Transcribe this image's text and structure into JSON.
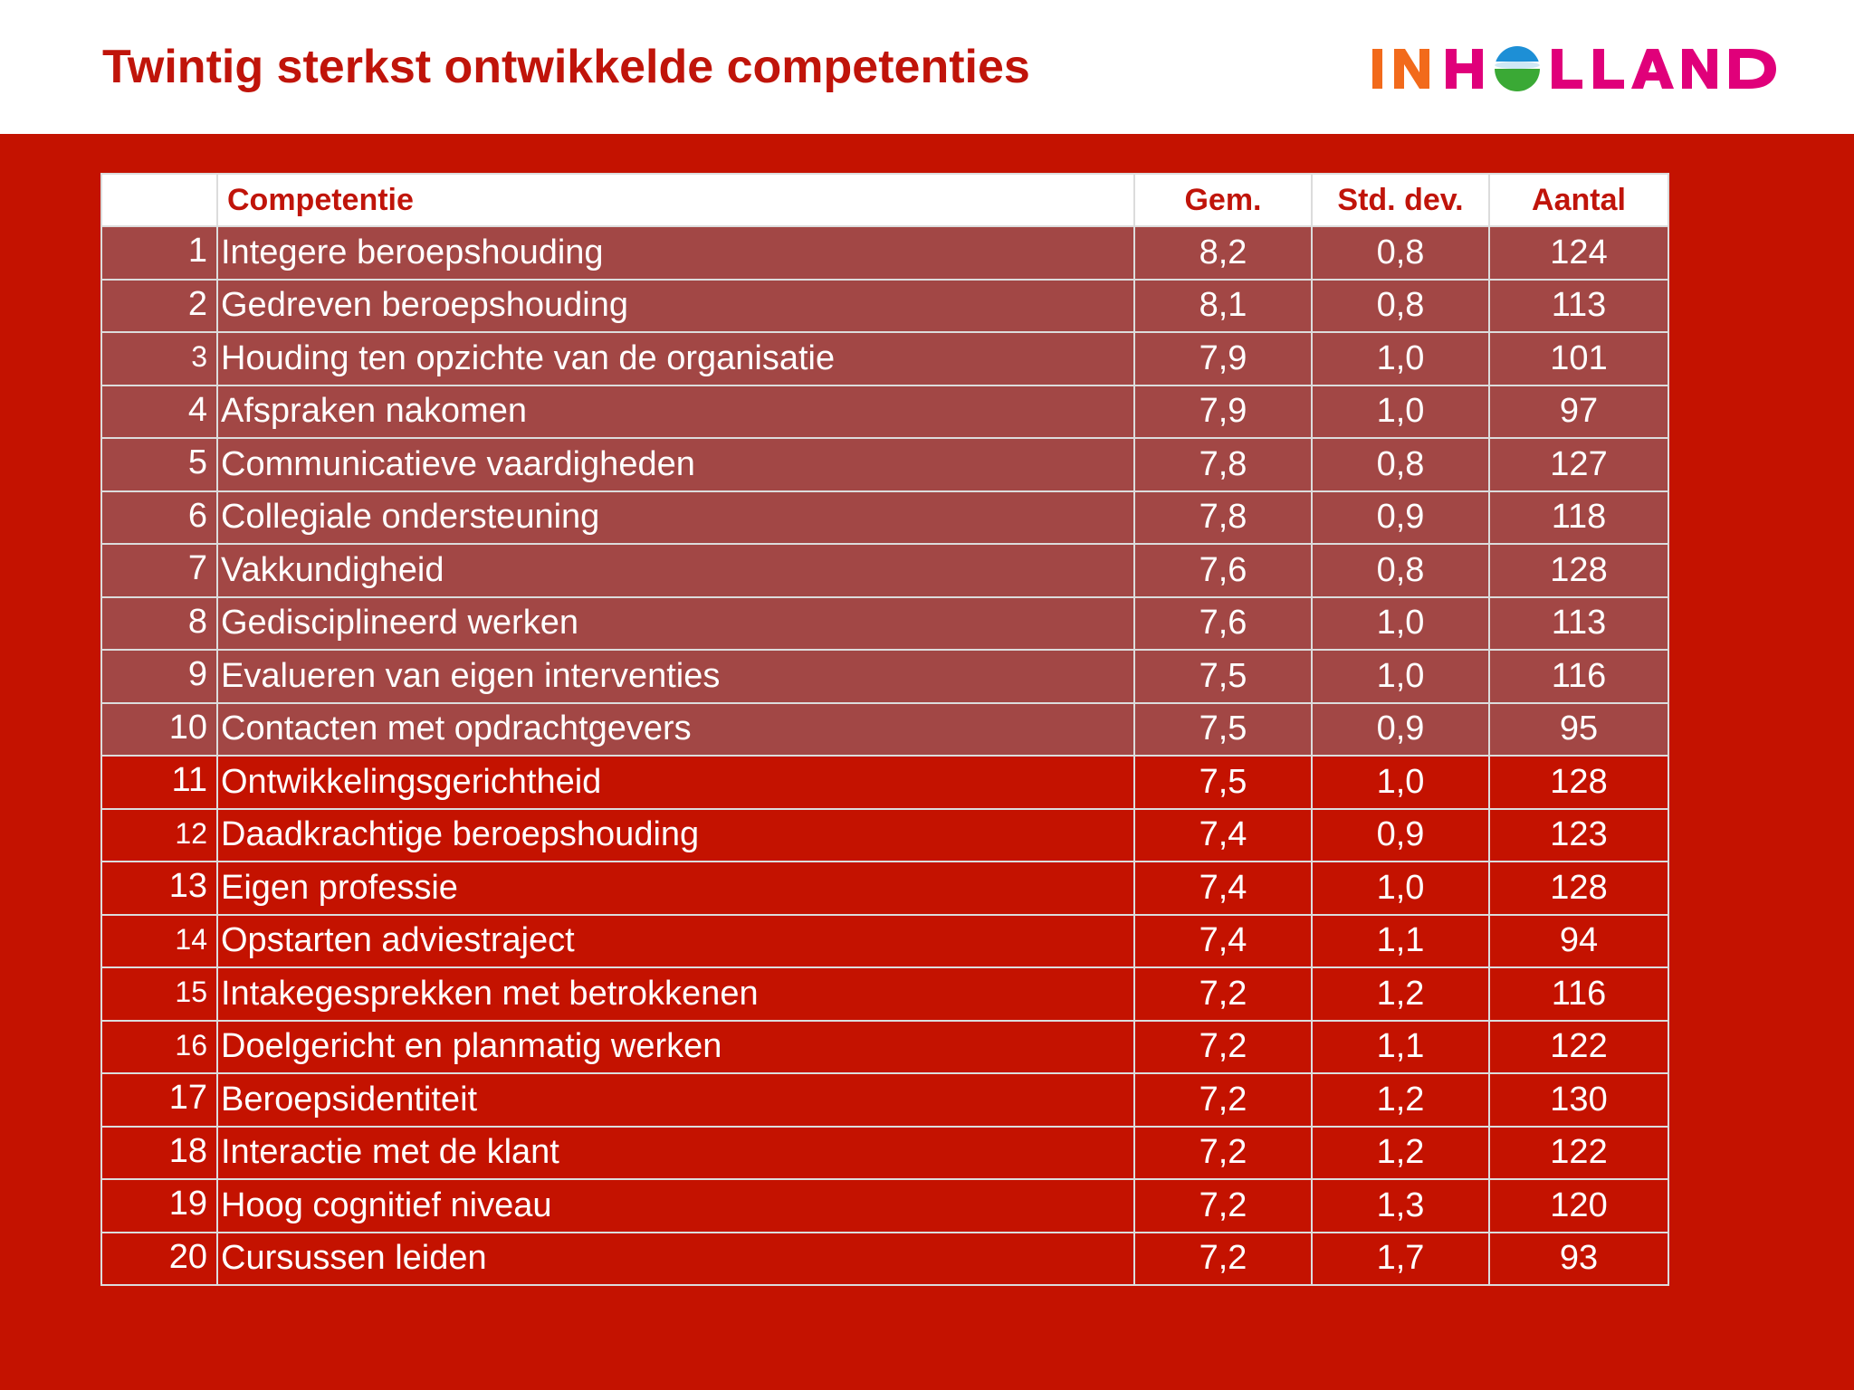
{
  "slide": {
    "title": "Twintig sterkst ontwikkelde competenties"
  },
  "logo": {
    "text": "INHOLLAND",
    "colors": {
      "orange": "#f26a1b",
      "magenta": "#e0007a",
      "globe_blue": "#1d8fd6",
      "globe_green": "#3aa935"
    }
  },
  "colors": {
    "background_red": "#c41200",
    "highlight_row": "#a24745",
    "title_red": "#c0140a"
  },
  "table": {
    "headers": {
      "rank": "",
      "name": "Competentie",
      "mean": "Gem.",
      "sd": "Std. dev.",
      "count": "Aantal"
    },
    "highlighted_rows": 10,
    "rows": [
      {
        "rank": "1",
        "name": "Integere beroepshouding",
        "mean": "8,2",
        "sd": "0,8",
        "count": "124"
      },
      {
        "rank": "2",
        "name": "Gedreven beroepshouding",
        "mean": "8,1",
        "sd": "0,8",
        "count": "113"
      },
      {
        "rank": "3",
        "name": "Houding ten opzichte van de organisatie",
        "mean": "7,9",
        "sd": "1,0",
        "count": "101"
      },
      {
        "rank": "4",
        "name": "Afspraken nakomen",
        "mean": "7,9",
        "sd": "1,0",
        "count": "97"
      },
      {
        "rank": "5",
        "name": "Communicatieve vaardigheden",
        "mean": "7,8",
        "sd": "0,8",
        "count": "127"
      },
      {
        "rank": "6",
        "name": "Collegiale ondersteuning",
        "mean": "7,8",
        "sd": "0,9",
        "count": "118"
      },
      {
        "rank": "7",
        "name": "Vakkundigheid",
        "mean": "7,6",
        "sd": "0,8",
        "count": "128"
      },
      {
        "rank": "8",
        "name": "Gedisciplineerd werken",
        "mean": "7,6",
        "sd": "1,0",
        "count": "113"
      },
      {
        "rank": "9",
        "name": "Evalueren van eigen interventies",
        "mean": "7,5",
        "sd": "1,0",
        "count": "116"
      },
      {
        "rank": "10",
        "name": "Contacten met opdrachtgevers",
        "mean": "7,5",
        "sd": "0,9",
        "count": "95"
      },
      {
        "rank": "11",
        "name": "Ontwikkelingsgerichtheid",
        "mean": "7,5",
        "sd": "1,0",
        "count": "128"
      },
      {
        "rank": "12",
        "name": "Daadkrachtige beroepshouding",
        "mean": "7,4",
        "sd": "0,9",
        "count": "123"
      },
      {
        "rank": "13",
        "name": "Eigen professie",
        "mean": "7,4",
        "sd": "1,0",
        "count": "128"
      },
      {
        "rank": "14",
        "name": "Opstarten adviestraject",
        "mean": "7,4",
        "sd": "1,1",
        "count": "94"
      },
      {
        "rank": "15",
        "name": "Intakegesprekken met betrokkenen",
        "mean": "7,2",
        "sd": "1,2",
        "count": "116"
      },
      {
        "rank": "16",
        "name": "Doelgericht en planmatig werken",
        "mean": "7,2",
        "sd": "1,1",
        "count": "122"
      },
      {
        "rank": "17",
        "name": "Beroepsidentiteit",
        "mean": "7,2",
        "sd": "1,2",
        "count": "130"
      },
      {
        "rank": "18",
        "name": "Interactie met de klant",
        "mean": "7,2",
        "sd": "1,2",
        "count": "122"
      },
      {
        "rank": "19",
        "name": "Hoog cognitief niveau",
        "mean": "7,2",
        "sd": "1,3",
        "count": "120"
      },
      {
        "rank": "20",
        "name": "Cursussen leiden",
        "mean": "7,2",
        "sd": "1,7",
        "count": "93"
      }
    ]
  }
}
